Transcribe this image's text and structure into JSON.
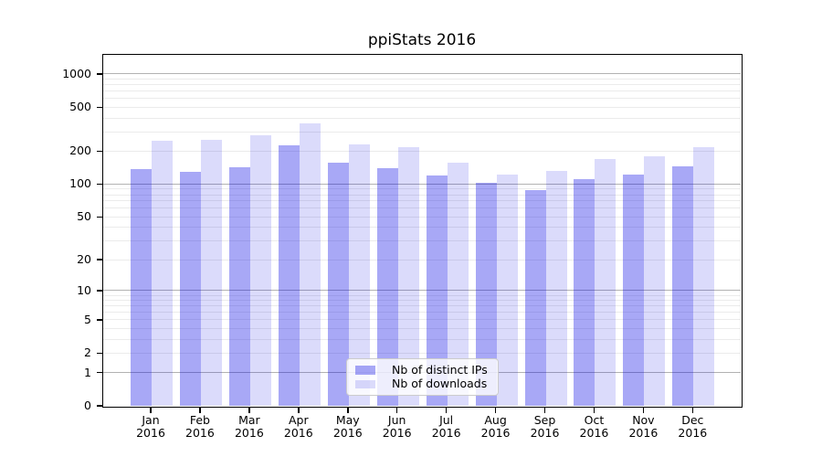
{
  "chart_data": {
    "type": "bar",
    "title": "ppiStats 2016",
    "categories": [
      "Jan",
      "Feb",
      "Mar",
      "Apr",
      "May",
      "Jun",
      "Jul",
      "Aug",
      "Sep",
      "Oct",
      "Nov",
      "Dec"
    ],
    "x_year_label": "2016",
    "series": [
      {
        "name": "Nb of distinct IPs",
        "color_hex": "#ababf9",
        "color_rgba": "rgba(0,0,230,0.34)",
        "values": [
          137,
          129,
          143,
          225,
          157,
          139,
          121,
          102,
          88,
          112,
          122,
          144
        ]
      },
      {
        "name": "Nb of downloads",
        "color_hex": "#dbdbfb",
        "color_rgba": "rgba(0,0,230,0.14)",
        "values": [
          246,
          252,
          281,
          355,
          231,
          217,
          156,
          123,
          133,
          170,
          179,
          218
        ]
      }
    ],
    "xlabel": "",
    "ylabel": "",
    "yscale": "log10(value+1)",
    "yticks": [
      0,
      1,
      2,
      5,
      10,
      20,
      50,
      100,
      200,
      500,
      1000
    ],
    "ylim": [
      0,
      1420
    ],
    "grid": {
      "major_color": "#b2b2b2",
      "minor_color": "#ebebeb",
      "horizontal_only": true
    },
    "legend_position": "lower center",
    "background_color": "#ffffff",
    "text_color": "#000000"
  }
}
